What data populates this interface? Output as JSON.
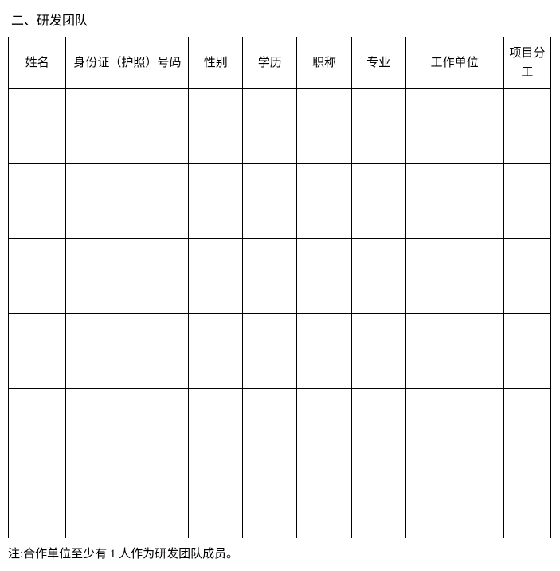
{
  "section_title": "二、研发团队",
  "table": {
    "columns": [
      {
        "key": "name",
        "label": "姓名",
        "class": "col-name"
      },
      {
        "key": "id",
        "label": "身份证（护照）号码",
        "class": "col-id"
      },
      {
        "key": "gender",
        "label": "性别",
        "class": "col-gender"
      },
      {
        "key": "education",
        "label": "学历",
        "class": "col-edu"
      },
      {
        "key": "title",
        "label": "职称",
        "class": "col-title"
      },
      {
        "key": "major",
        "label": "专业",
        "class": "col-major"
      },
      {
        "key": "work_unit",
        "label": "工作单位",
        "class": "col-work"
      },
      {
        "key": "role",
        "label": "项目分工",
        "class": "col-role"
      }
    ],
    "rows": [
      [
        "",
        "",
        "",
        "",
        "",
        "",
        "",
        ""
      ],
      [
        "",
        "",
        "",
        "",
        "",
        "",
        "",
        ""
      ],
      [
        "",
        "",
        "",
        "",
        "",
        "",
        "",
        ""
      ],
      [
        "",
        "",
        "",
        "",
        "",
        "",
        "",
        ""
      ],
      [
        "",
        "",
        "",
        "",
        "",
        "",
        "",
        ""
      ],
      [
        "",
        "",
        "",
        "",
        "",
        "",
        "",
        ""
      ]
    ]
  },
  "note": "注:合作单位至少有 1 人作为研发团队成员。",
  "colors": {
    "text": "#000000",
    "background": "#ffffff",
    "border": "#000000"
  },
  "typography": {
    "font_family": "SimSun",
    "title_fontsize": 16,
    "header_fontsize": 15,
    "note_fontsize": 15
  }
}
